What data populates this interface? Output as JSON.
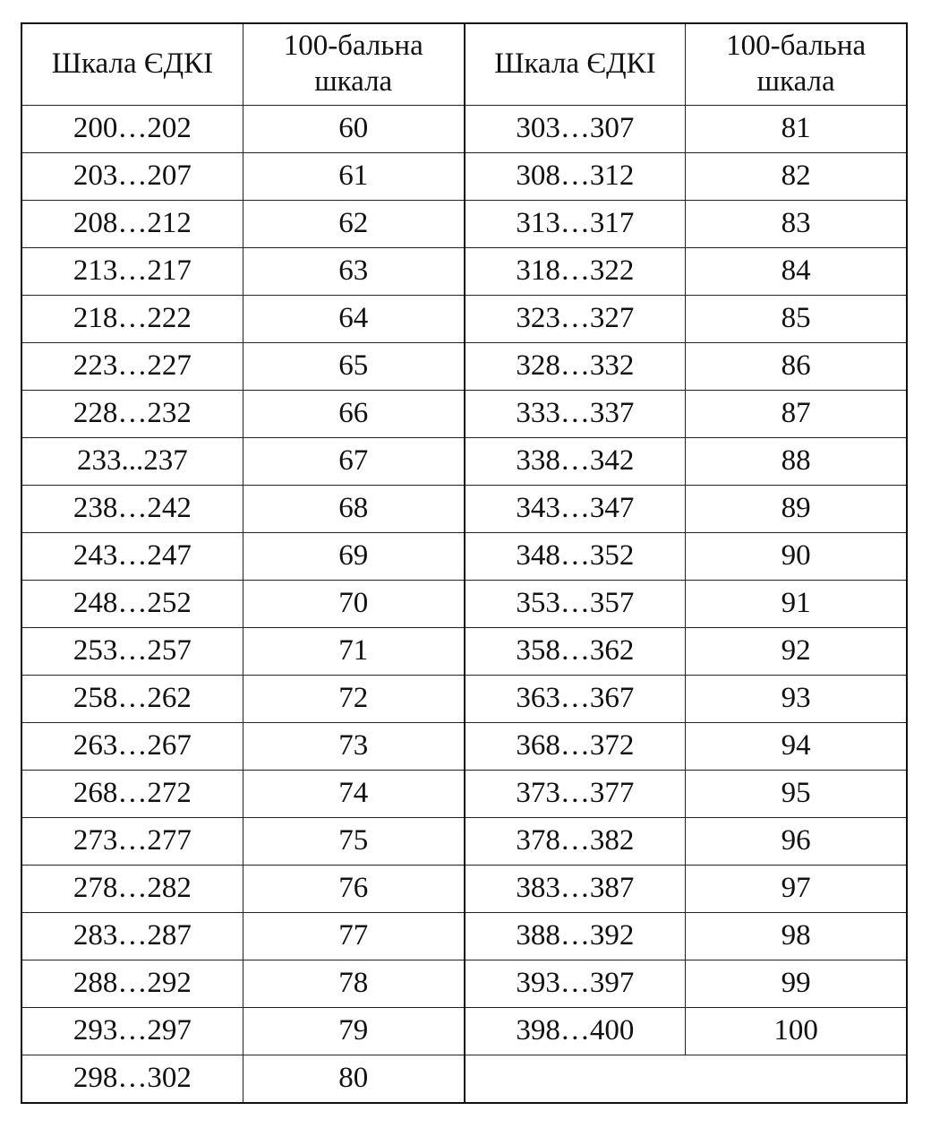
{
  "table": {
    "headers": [
      "Шкала ЄДКІ",
      "100-бальна шкала",
      "Шкала ЄДКІ",
      "100-бальна шкала"
    ],
    "left": [
      [
        "200…202",
        "60"
      ],
      [
        "203…207",
        "61"
      ],
      [
        "208…212",
        "62"
      ],
      [
        "213…217",
        "63"
      ],
      [
        "218…222",
        "64"
      ],
      [
        "223…227",
        "65"
      ],
      [
        "228…232",
        "66"
      ],
      [
        "233...237",
        "67"
      ],
      [
        "238…242",
        "68"
      ],
      [
        "243…247",
        "69"
      ],
      [
        "248…252",
        "70"
      ],
      [
        "253…257",
        "71"
      ],
      [
        "258…262",
        "72"
      ],
      [
        "263…267",
        "73"
      ],
      [
        "268…272",
        "74"
      ],
      [
        "273…277",
        "75"
      ],
      [
        "278…282",
        "76"
      ],
      [
        "283…287",
        "77"
      ],
      [
        "288…292",
        "78"
      ],
      [
        "293…297",
        "79"
      ],
      [
        "298…302",
        "80"
      ]
    ],
    "right": [
      [
        "303…307",
        "81"
      ],
      [
        "308…312",
        "82"
      ],
      [
        "313…317",
        "83"
      ],
      [
        "318…322",
        "84"
      ],
      [
        "323…327",
        "85"
      ],
      [
        "328…332",
        "86"
      ],
      [
        "333…337",
        "87"
      ],
      [
        "338…342",
        "88"
      ],
      [
        "343…347",
        "89"
      ],
      [
        "348…352",
        "90"
      ],
      [
        "353…357",
        "91"
      ],
      [
        "358…362",
        "92"
      ],
      [
        "363…367",
        "93"
      ],
      [
        "368…372",
        "94"
      ],
      [
        "373…377",
        "95"
      ],
      [
        "378…382",
        "96"
      ],
      [
        "383…387",
        "97"
      ],
      [
        "388…392",
        "98"
      ],
      [
        "393…397",
        "99"
      ],
      [
        "398…400",
        "100"
      ]
    ]
  }
}
